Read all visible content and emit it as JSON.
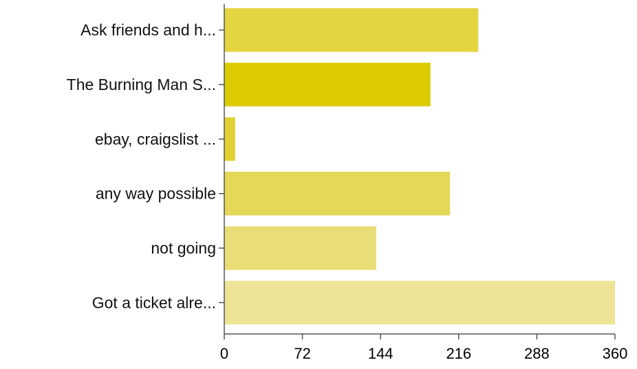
{
  "chart_data": {
    "type": "bar",
    "orientation": "horizontal",
    "categories": [
      "Ask friends and h...",
      "The Burning Man S...",
      "ebay, craigslist ...",
      "any way possible",
      "not going",
      "Got a ticket alre..."
    ],
    "values": [
      234,
      190,
      10,
      208,
      140,
      360
    ],
    "bar_colors": [
      "#e3d440",
      "#dccb00",
      "#e1d132",
      "#e5d757",
      "#e9dd77",
      "#ede495"
    ],
    "xlim": [
      0,
      360
    ],
    "xticks": [
      "0",
      "72",
      "144",
      "216",
      "288",
      "360"
    ],
    "title": "",
    "xlabel": "",
    "ylabel": "",
    "grid": false,
    "legend": "none"
  }
}
